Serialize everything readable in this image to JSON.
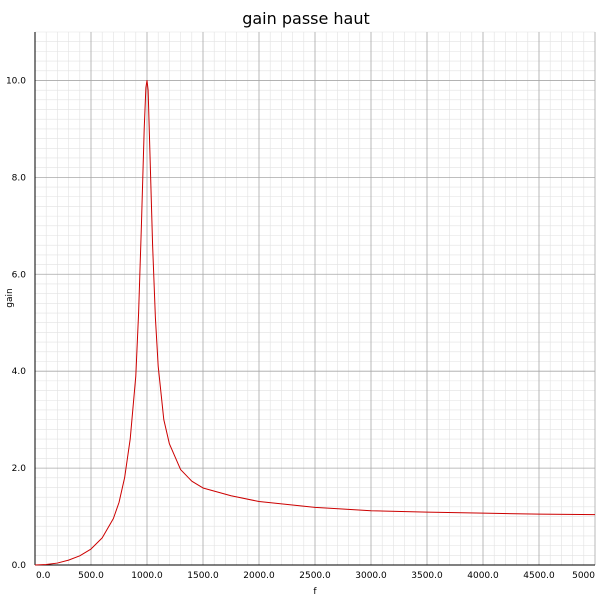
{
  "chart_data": {
    "type": "line",
    "title": "gain passe haut",
    "xlabel": "f",
    "ylabel": "gain",
    "xlim": [
      0,
      5000
    ],
    "ylim": [
      0,
      11
    ],
    "x_ticks": [
      0,
      500,
      1000,
      1500,
      2000,
      2500,
      3000,
      3500,
      4000,
      4500,
      5000
    ],
    "x_tick_labels": [
      "0.0",
      "500.0",
      "1000.0",
      "1500.0",
      "2000.0",
      "2500.0",
      "3000.0",
      "3500.0",
      "4000.0",
      "4500.0",
      "5000"
    ],
    "y_ticks": [
      0,
      2,
      4,
      6,
      8,
      10
    ],
    "y_tick_labels": [
      "0.0",
      "2.0",
      "4.0",
      "6.0",
      "8.0",
      "10.0"
    ],
    "grid": true,
    "minor_grid": true,
    "series": [
      {
        "color": "#cc0000",
        "x": [
          0,
          100,
          200,
          300,
          400,
          500,
          600,
          700,
          750,
          800,
          850,
          900,
          925,
          950,
          975,
          990,
          1000,
          1010,
          1025,
          1050,
          1075,
          1100,
          1150,
          1200,
          1300,
          1400,
          1500,
          1750,
          2000,
          2500,
          3000,
          3500,
          4000,
          4500,
          5000
        ],
        "y": [
          0,
          0.01,
          0.04,
          0.1,
          0.19,
          0.33,
          0.56,
          0.96,
          1.29,
          1.8,
          2.6,
          3.9,
          5.2,
          7.0,
          9.0,
          9.85,
          10.0,
          9.8,
          8.6,
          6.6,
          5.1,
          4.1,
          3.0,
          2.5,
          1.97,
          1.73,
          1.59,
          1.43,
          1.31,
          1.19,
          1.12,
          1.09,
          1.07,
          1.05,
          1.04
        ]
      }
    ]
  }
}
